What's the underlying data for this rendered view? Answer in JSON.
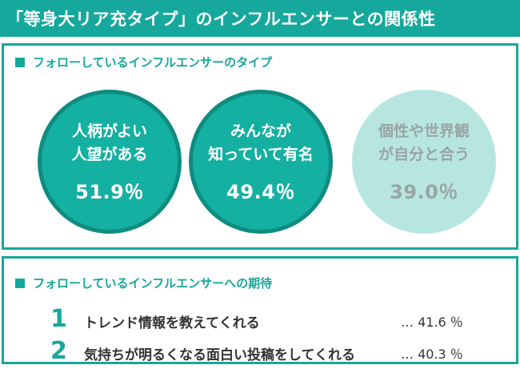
{
  "title": "「等身大リア充タイプ」のインフルエンサーとの関係性",
  "types_section": {
    "label": "フォローしているインフルエンサーのタイプ",
    "items": [
      {
        "line1": "人柄がよい",
        "line2": "人望がある",
        "percent": "51.9％"
      },
      {
        "line1": "みんなが",
        "line2": "知っていて有名",
        "percent": "49.4％"
      },
      {
        "line1": "個性や世界観",
        "line2": "が自分と合う",
        "percent": "39.0％"
      }
    ]
  },
  "expectations_section": {
    "label": "フォローしているインフルエンサーへの期待",
    "items": [
      {
        "rank": "1",
        "text": "トレンド情報を教えてくれる",
        "percent": "… 41.6 ％"
      },
      {
        "rank": "2",
        "text": "気持ちが明るくなる面白い投稿をしてくれる",
        "percent": "… 40.3 ％"
      }
    ]
  },
  "colors": {
    "accent": "#16a89c",
    "accent_dark": "#0f8c80",
    "muted_circle": "#b7e6e1"
  }
}
